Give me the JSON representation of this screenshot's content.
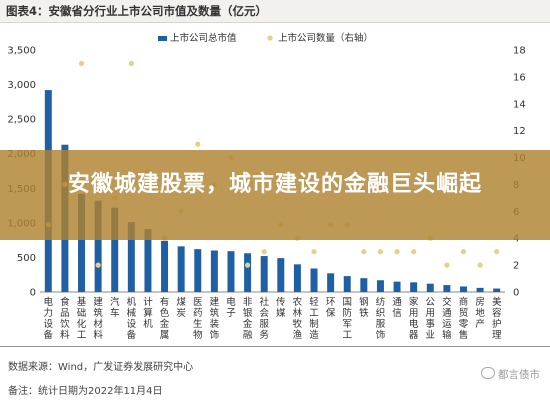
{
  "header": {
    "title": "图表4：安徽省分行业上市公司市值及数量（亿元）"
  },
  "banner": {
    "headline": "安徽城建股票，城市建设的金融巨头崛起"
  },
  "footer": {
    "source": "数据来源：Wind，广发证券发展研究中心",
    "note": "备注：统计日期为2022年11月4日",
    "watermark": "都言债市"
  },
  "colors": {
    "bar": "#1f5fa3",
    "dot": "#e6cf86",
    "axis": "#888888"
  },
  "chart_data": {
    "type": "bar",
    "categories": [
      "电力设备",
      "食品饮料",
      "基础化工",
      "建筑材料",
      "汽车",
      "机械设备",
      "计算机",
      "有色金属",
      "煤炭",
      "医药生物",
      "建筑装饰",
      "电子",
      "非银金融",
      "社会服务",
      "传媒",
      "农林牧渔",
      "轻工制造",
      "环保",
      "国防军工",
      "钢铁",
      "纺织服饰",
      "通信",
      "家用电器",
      "公用事业",
      "交通运输",
      "商贸零售",
      "房地产",
      "美容护理"
    ],
    "series": [
      {
        "name": "上市公司总市值",
        "type": "bar",
        "axis": "left",
        "values": [
          2920,
          2130,
          1420,
          1320,
          1220,
          1010,
          910,
          740,
          660,
          620,
          600,
          590,
          560,
          520,
          490,
          400,
          340,
          270,
          230,
          200,
          170,
          150,
          140,
          120,
          100,
          80,
          60,
          50
        ]
      },
      {
        "name": "上市公司数量（右轴）",
        "type": "scatter",
        "axis": "right",
        "values": [
          5,
          8,
          17,
          2,
          7,
          17,
          9,
          4,
          6,
          11,
          8,
          10,
          2,
          3,
          5,
          4,
          3,
          5,
          5,
          3,
          3,
          3,
          3,
          4,
          2,
          3,
          2,
          3
        ]
      }
    ],
    "yleft": {
      "ticks": [
        "0",
        "500",
        "1,000",
        "1,500",
        "2,000",
        "2,500",
        "3,000",
        "3,500"
      ],
      "min": 0,
      "max": 3500
    },
    "yright": {
      "ticks": [
        "0",
        "2",
        "4",
        "6",
        "8",
        "10",
        "12",
        "14",
        "16",
        "18"
      ],
      "min": 0,
      "max": 18
    },
    "legend": "top-center",
    "grid": false
  }
}
